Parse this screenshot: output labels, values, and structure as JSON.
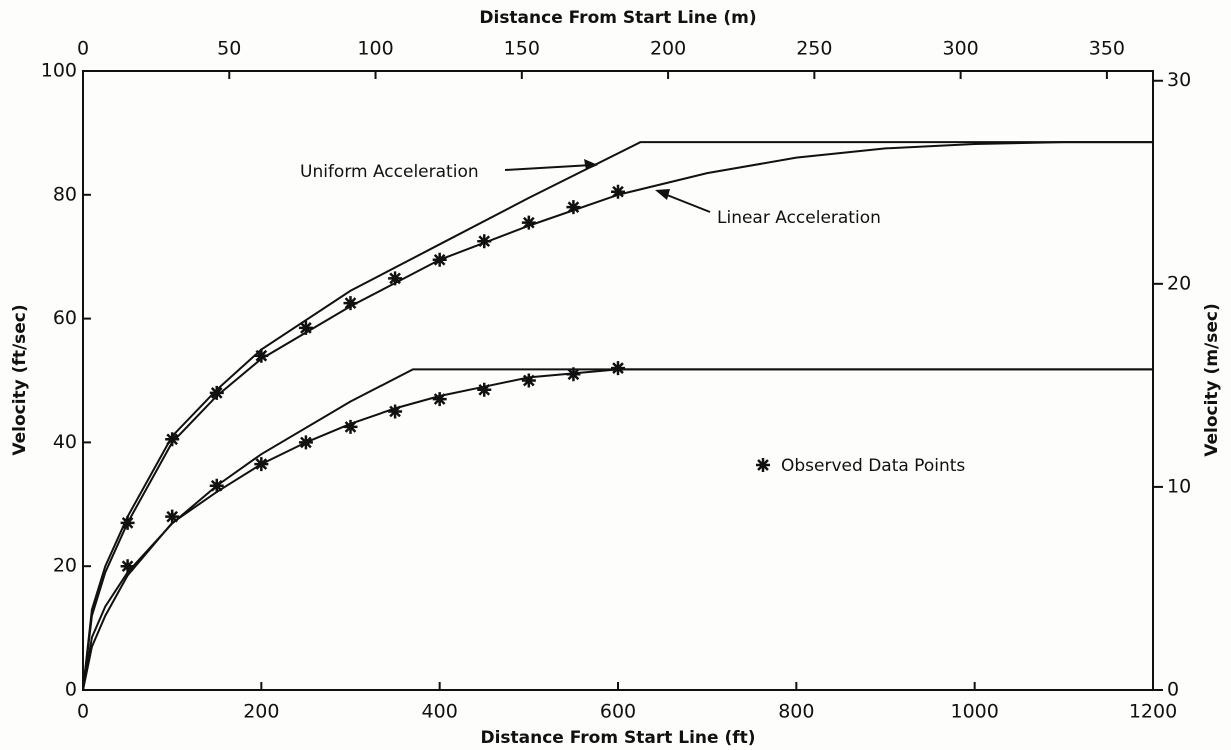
{
  "chart_data": {
    "type": "line",
    "xlabel": "Distance From Start Line (ft)",
    "x2label": "Distance From Start Line (m)",
    "ylabel": "Velocity (ft/sec)",
    "y2label": "Velocity (m/sec)",
    "xlim": [
      0,
      1200
    ],
    "xticks": [
      0,
      200,
      400,
      600,
      800,
      1000,
      1200
    ],
    "x2lim": [
      0,
      365.76
    ],
    "x2ticks": [
      0,
      50,
      100,
      150,
      200,
      250,
      300,
      350
    ],
    "ylim": [
      0,
      100
    ],
    "yticks": [
      0,
      20,
      40,
      60,
      80,
      100
    ],
    "y2lim": [
      0,
      30.48
    ],
    "y2ticks": [
      0,
      10,
      20,
      30
    ],
    "color": "#111111",
    "series": [
      {
        "name": "Uniform Acceleration",
        "x": [
          0,
          10,
          25,
          50,
          100,
          150,
          200,
          300,
          400,
          500,
          625,
          1200
        ],
        "values": [
          0,
          13,
          20,
          28,
          41,
          48.5,
          55,
          64.5,
          72,
          79.5,
          88.5,
          88.5
        ]
      },
      {
        "name": "Linear Acceleration",
        "x": [
          0,
          10,
          25,
          50,
          100,
          150,
          200,
          300,
          400,
          500,
          600,
          700,
          800,
          900,
          1000,
          1100,
          1200
        ],
        "values": [
          0,
          12,
          19,
          27,
          40,
          47.5,
          53.5,
          62,
          69.5,
          75,
          80,
          83.5,
          86,
          87.5,
          88.2,
          88.5,
          88.5
        ]
      },
      {
        "x": [
          0,
          10,
          25,
          50,
          100,
          150,
          200,
          300,
          370,
          1200
        ],
        "values": [
          0,
          8.5,
          13.5,
          19,
          26.9,
          33,
          38.1,
          46.6,
          51.8,
          51.8
        ]
      },
      {
        "x": [
          0,
          10,
          25,
          50,
          100,
          150,
          200,
          250,
          300,
          350,
          400,
          450,
          500,
          600,
          1200
        ],
        "values": [
          0,
          7,
          12,
          18.5,
          27,
          32,
          36.5,
          40,
          43,
          45.5,
          47.5,
          49,
          50.5,
          51.8,
          51.8
        ]
      }
    ],
    "points": {
      "name": "Observed Data Points",
      "x": [
        50,
        100,
        150,
        200,
        250,
        300,
        350,
        400,
        450,
        500,
        550,
        600,
        50,
        100,
        150,
        200,
        250,
        300,
        350,
        400,
        450,
        500,
        550,
        600
      ],
      "values": [
        27,
        40.5,
        48,
        54,
        58.5,
        62.5,
        66.5,
        69.5,
        72.5,
        75.5,
        78,
        80.5,
        20,
        28,
        33,
        36.5,
        40,
        42.5,
        45,
        47,
        48.5,
        50,
        51,
        52
      ]
    }
  }
}
